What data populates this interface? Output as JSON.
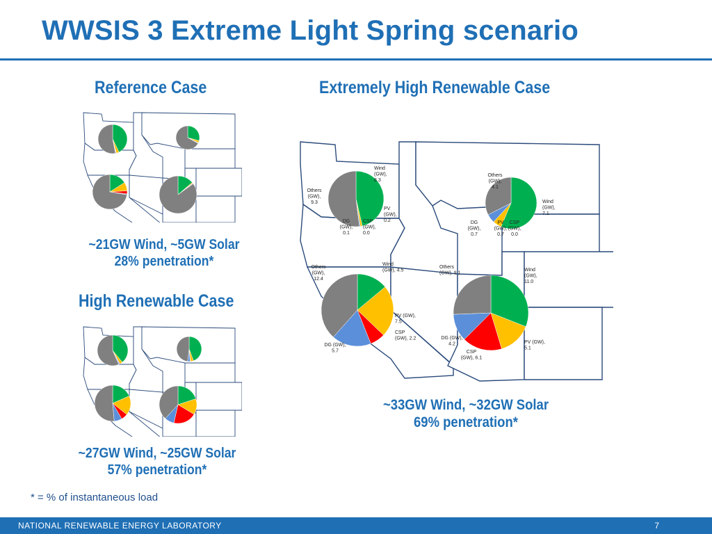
{
  "slide": {
    "title": "WWSIS 3 Extreme Light Spring scenario",
    "footnote": "* = % of instantaneous load",
    "footer_org": "NATIONAL RENEWABLE ENERGY LABORATORY",
    "page_number": "7"
  },
  "colors": {
    "title_blue": "#1f6fb5",
    "wind": "#00b050",
    "pv": "#ffc000",
    "csp": "#ff0000",
    "dg": "#5b8fd9",
    "others": "#808080"
  },
  "reference_case": {
    "heading": "Reference Case",
    "caption_line1": "~21GW Wind, ~5GW Solar",
    "caption_line2": "28% penetration*"
  },
  "high_renewable_case": {
    "heading": "High Renewable Case",
    "caption_line1": "~27GW Wind, ~25GW Solar",
    "caption_line2": "57% penetration*"
  },
  "extremely_high_case": {
    "heading": "Extremely High Renewable Case",
    "caption_line1": "~33GW Wind, ~32GW Solar",
    "caption_line2": "69% penetration*",
    "regions": [
      {
        "slices": [
          {
            "category": "Wind (GW)",
            "value": 8.3
          },
          {
            "category": "PV (GW)",
            "value": 0.2
          },
          {
            "category": "CSP (GW)",
            "value": 0.0
          },
          {
            "category": "DG (GW)",
            "value": 0.1
          },
          {
            "category": "Others (GW)",
            "value": 9.3
          }
        ],
        "labels": [
          [
            "Wind",
            "(GW),",
            "8.3"
          ],
          [
            "PV",
            "(GW),",
            "0.2"
          ],
          [
            "CSP",
            "(GW),",
            "0.0"
          ],
          [
            "DG",
            "(GW),",
            "0.1"
          ],
          [
            "Others",
            "(GW),",
            "9.3"
          ]
        ]
      },
      {
        "slices": [
          {
            "category": "Wind (GW)",
            "value": 7.1
          },
          {
            "category": "PV (GW)",
            "value": 0.7
          },
          {
            "category": "CSP (GW)",
            "value": 0.0
          },
          {
            "category": "DG (GW)",
            "value": 0.7
          },
          {
            "category": "Others (GW)",
            "value": 4.1
          }
        ],
        "labels": [
          [
            "Wind",
            "(GW),",
            "7.1"
          ],
          [
            "PV",
            "(GW),",
            "0.7"
          ],
          [
            "CSP",
            "(GW),",
            "0.0"
          ],
          [
            "DG",
            "(GW),",
            "0.7"
          ],
          [
            "Others",
            "(GW),",
            "4.1"
          ]
        ]
      },
      {
        "slices": [
          {
            "category": "Wind (GW)",
            "value": 4.5
          },
          {
            "category": "PV (GW)",
            "value": 7.5
          },
          {
            "category": "CSP (GW)",
            "value": 2.2
          },
          {
            "category": "DG (GW)",
            "value": 5.7
          },
          {
            "category": "Others (GW)",
            "value": 12.4
          }
        ],
        "labels": [
          [
            "Wind",
            "(GW), 4.5"
          ],
          [
            "PV (GW),",
            "7.5"
          ],
          [
            "CSP",
            "(GW), 2.2"
          ],
          [
            "DG (GW),",
            "5.7"
          ],
          [
            "Others",
            "(GW),",
            "12.4"
          ]
        ]
      },
      {
        "slices": [
          {
            "category": "Wind (GW)",
            "value": 11.0
          },
          {
            "category": "PV (GW)",
            "value": 5.1
          },
          {
            "category": "CSP (GW)",
            "value": 6.1
          },
          {
            "category": "DG (GW)",
            "value": 4.2
          },
          {
            "category": "Others (GW)",
            "value": 9.1
          }
        ],
        "labels": [
          [
            "Wind",
            "(GW),",
            "11.0"
          ],
          [
            "PV (GW),",
            "5.1"
          ],
          [
            "CSP",
            "(GW), 6.1"
          ],
          [
            "DG (GW),",
            "4.2"
          ],
          [
            "Others",
            "(GW), 9.1"
          ]
        ]
      }
    ]
  },
  "chart_data": [
    {
      "type": "pie",
      "series": [
        {
          "categories": [
            "Wind (GW)",
            "PV (GW)",
            "CSP (GW)",
            "DG (GW)",
            "Others (GW)"
          ],
          "values": [
            8.3,
            0.2,
            0.0,
            0.1,
            9.3
          ]
        },
        {
          "categories": [
            "Wind (GW)",
            "PV (GW)",
            "CSP (GW)",
            "DG (GW)",
            "Others (GW)"
          ],
          "values": [
            7.1,
            0.7,
            0.0,
            0.7,
            4.1
          ]
        },
        {
          "categories": [
            "Wind (GW)",
            "PV (GW)",
            "CSP (GW)",
            "DG (GW)",
            "Others (GW)"
          ],
          "values": [
            4.5,
            7.5,
            2.2,
            5.7,
            12.4
          ]
        },
        {
          "categories": [
            "Wind (GW)",
            "PV (GW)",
            "CSP (GW)",
            "DG (GW)",
            "Others (GW)"
          ],
          "values": [
            11.0,
            5.1,
            6.1,
            4.2,
            9.1
          ]
        }
      ]
    }
  ]
}
